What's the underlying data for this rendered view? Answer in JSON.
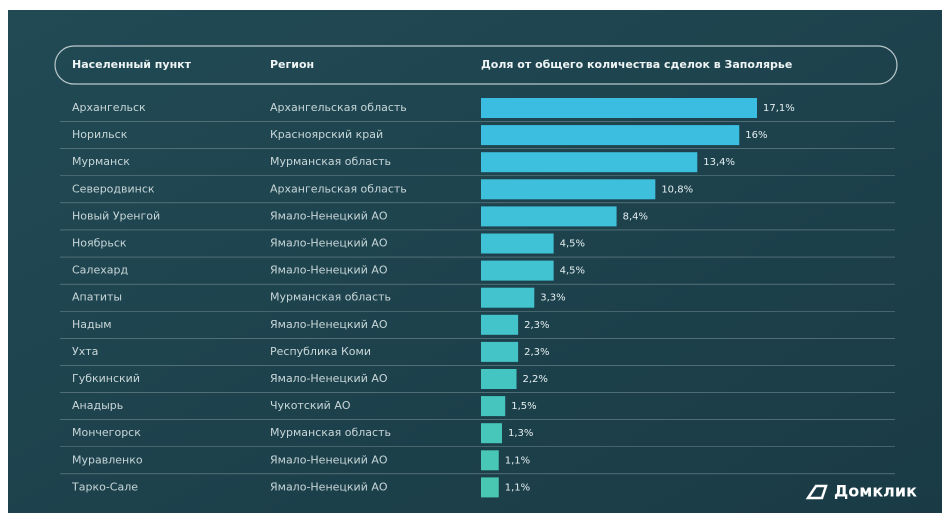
{
  "chart_data": {
    "type": "hbar",
    "headers": [
      "Населенный пункт",
      "Регион",
      "Доля от общего количества сделок в Заполярье"
    ],
    "categories": [
      "Архангельск",
      "Норильск",
      "Мурманск",
      "Северодвинск",
      "Новый Уренгой",
      "Ноябрьск",
      "Салехард",
      "Апатиты",
      "Надым",
      "Ухта",
      "Губкинский",
      "Анадырь",
      "Мончегорск",
      "Муравленко",
      "Тарко-Сале"
    ],
    "regions": [
      "Архангельская область",
      "Красноярский край",
      "Мурманская область",
      "Архангельская область",
      "Ямало-Ненецкий АО",
      "Ямало-Ненецкий АО",
      "Ямало-Ненецкий АО",
      "Мурманская область",
      "Ямало-Ненецкий АО",
      "Республика Коми",
      "Ямало-Ненецкий АО",
      "Чукотский АО",
      "Мурманская область",
      "Ямало-Ненецкий АО",
      "Ямало-Ненецкий АО"
    ],
    "values": [
      17.1,
      16,
      13.4,
      10.8,
      8.4,
      4.5,
      4.5,
      3.3,
      2.3,
      2.3,
      2.2,
      1.5,
      1.3,
      1.1,
      1.1
    ],
    "value_labels": [
      "17,1%",
      "16%",
      "13,4%",
      "10,8%",
      "8,4%",
      "4,5%",
      "4,5%",
      "3,3%",
      "2,3%",
      "2,3%",
      "2,2%",
      "1,5%",
      "1,3%",
      "1,1%",
      "1,1%"
    ],
    "colors": [
      "#3bbde2",
      "#3cbee0",
      "#3dbfde",
      "#3ec0dc",
      "#3fc1da",
      "#40c2d6",
      "#41c3d2",
      "#42c3ce",
      "#43c4ca",
      "#44c4c6",
      "#45c5c2",
      "#46c5be",
      "#47c6ba",
      "#48c6b6",
      "#49c7b2"
    ],
    "brand": "Домклик"
  }
}
